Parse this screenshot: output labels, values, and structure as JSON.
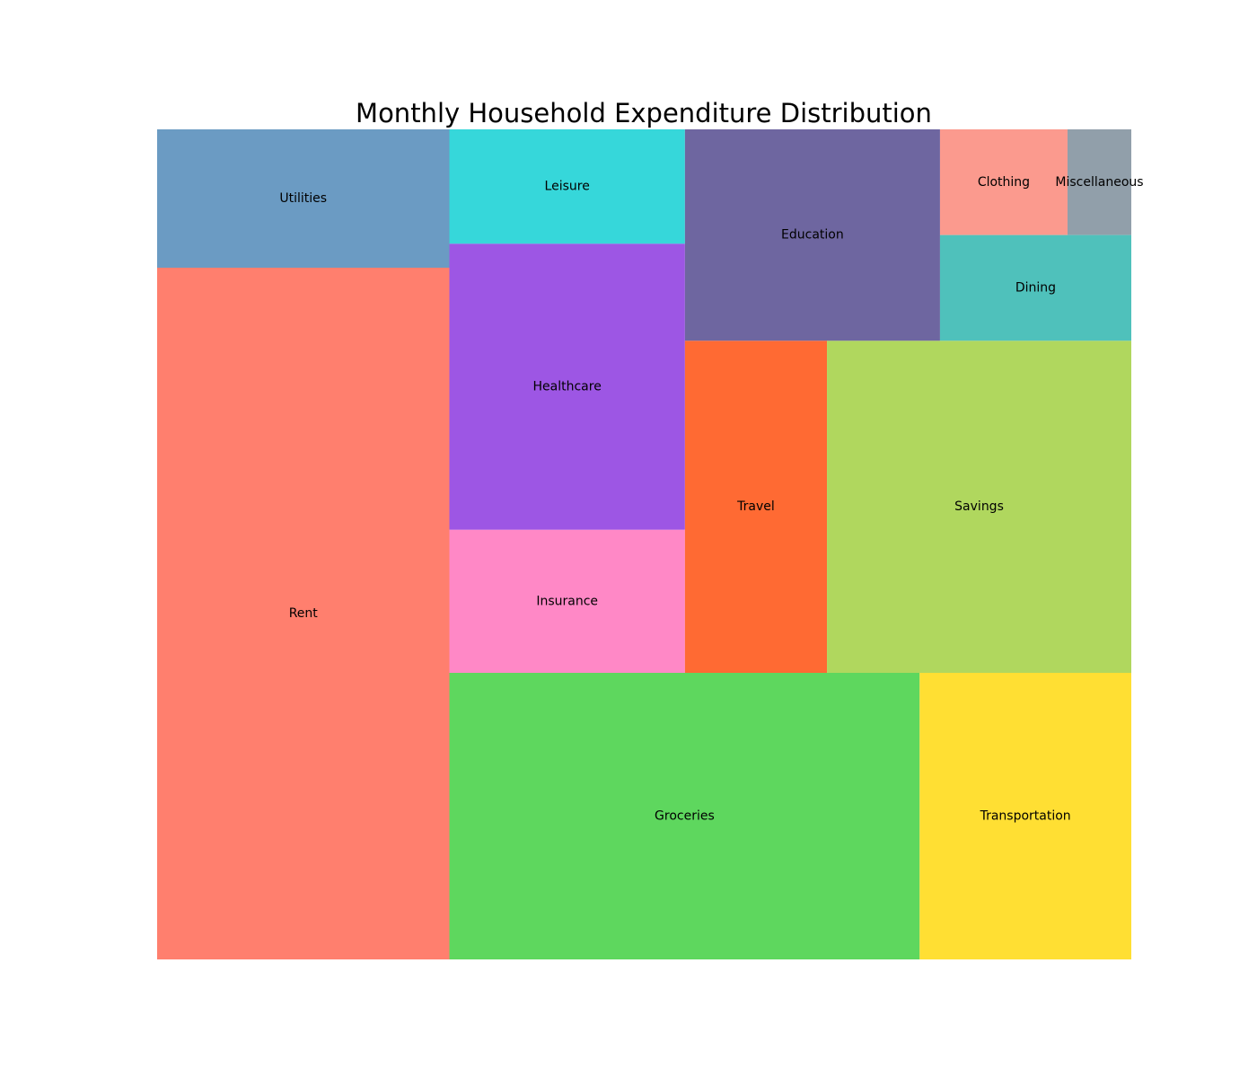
{
  "chart_data": {
    "type": "treemap",
    "title": "Monthly Household Expenditure Distribution",
    "legend": "none",
    "grid": false,
    "axes": "off",
    "items": [
      {
        "label": "Rent",
        "value": 1500,
        "color": "#FF7F6E"
      },
      {
        "label": "Utilities",
        "value": 300,
        "color": "#6B9BC3"
      },
      {
        "label": "Leisure",
        "value": 200,
        "color": "#36D7DA"
      },
      {
        "label": "Healthcare",
        "value": 500,
        "color": "#9D56E4"
      },
      {
        "label": "Insurance",
        "value": 250,
        "color": "#FF88C6"
      },
      {
        "label": "Groceries",
        "value": 1000,
        "color": "#5ED75E"
      },
      {
        "label": "Transportation",
        "value": 450,
        "color": "#FFDF33"
      },
      {
        "label": "Travel",
        "value": 350,
        "color": "#FF6A33"
      },
      {
        "label": "Savings",
        "value": 750,
        "color": "#B0D75E"
      },
      {
        "label": "Education",
        "value": 400,
        "color": "#6E66A0"
      },
      {
        "label": "Clothing",
        "value": 100,
        "color": "#FB9A8E"
      },
      {
        "label": "Miscellaneous",
        "value": 50,
        "color": "#919FAA"
      },
      {
        "label": "Dining",
        "value": 150,
        "color": "#4FC1BB"
      }
    ]
  }
}
